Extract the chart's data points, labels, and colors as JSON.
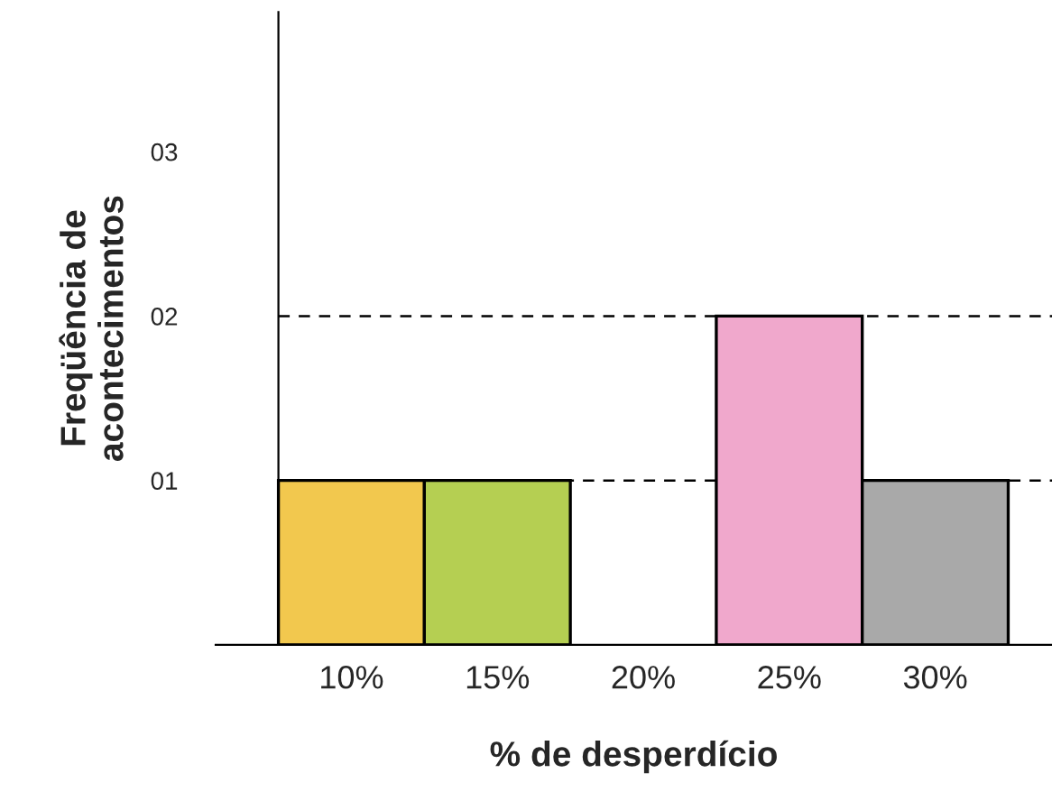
{
  "chart_data": {
    "type": "bar",
    "xlabel": "% de desperdício",
    "ylabel": "Freqüência de\nacontecimentos",
    "categories": [
      "10%",
      "15%",
      "20%",
      "25%",
      "30%"
    ],
    "values": [
      1,
      1,
      0,
      2,
      1
    ],
    "colors": [
      "#f2c84e",
      "#b5cf52",
      "#ffffff",
      "#f0a8cc",
      "#a9a9a9"
    ],
    "ylim": [
      0,
      3.85
    ],
    "yticks": [
      {
        "value": 1,
        "label": "01"
      },
      {
        "value": 2,
        "label": "02"
      },
      {
        "value": 3,
        "label": "03"
      }
    ],
    "ref_lines": [
      {
        "axis": "y",
        "value": 1,
        "line_style": "dashed",
        "color": "#000000"
      },
      {
        "axis": "y",
        "value": 2,
        "line_style": "dashed",
        "color": "#000000"
      }
    ],
    "grid": false,
    "legend": false
  }
}
